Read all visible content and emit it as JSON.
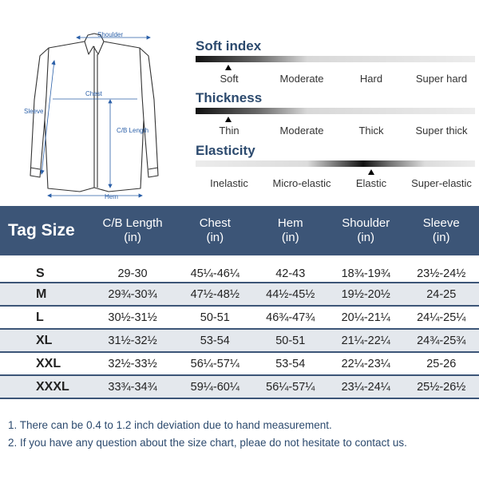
{
  "diagram": {
    "shoulder_label": "Shoulder",
    "chest_label": "Chest",
    "sleeve_label": "Sleeve",
    "cb_length_label": "C/B Length",
    "hem_label": "Hem"
  },
  "indices": [
    {
      "title": "Soft index",
      "options": [
        "Soft",
        "Moderate",
        "Hard",
        "Super hard"
      ],
      "selected": 0
    },
    {
      "title": "Thickness",
      "options": [
        "Thin",
        "Moderate",
        "Thick",
        "Super thick"
      ],
      "selected": 0
    },
    {
      "title": "Elasticity",
      "options": [
        "Inelastic",
        "Micro-elastic",
        "Elastic",
        "Super-elastic"
      ],
      "selected": 2
    }
  ],
  "table": {
    "headers": [
      {
        "line1": "Tag Size",
        "line2": ""
      },
      {
        "line1": "C/B Length",
        "line2": "(in)"
      },
      {
        "line1": "Chest",
        "line2": "(in)"
      },
      {
        "line1": "Hem",
        "line2": "(in)"
      },
      {
        "line1": "Shoulder",
        "line2": "(in)"
      },
      {
        "line1": "Sleeve",
        "line2": "(in)"
      }
    ],
    "rows": [
      {
        "size": "S",
        "cb": "29-30",
        "chest": "45¼-46¼",
        "hem": "42-43",
        "shoulder": "18¾-19¾",
        "sleeve": "23½-24½"
      },
      {
        "size": "M",
        "cb": "29¾-30¾",
        "chest": "47½-48½",
        "hem": "44½-45½",
        "shoulder": "19½-20½",
        "sleeve": "24-25"
      },
      {
        "size": "L",
        "cb": "30½-31½",
        "chest": "50-51",
        "hem": "46¾-47¾",
        "shoulder": "20¼-21¼",
        "sleeve": "24¼-25¼"
      },
      {
        "size": "XL",
        "cb": "31½-32½",
        "chest": "53-54",
        "hem": "50-51",
        "shoulder": "21¼-22¼",
        "sleeve": "24¾-25¾"
      },
      {
        "size": "XXL",
        "cb": "32½-33½",
        "chest": "56¼-57¼",
        "hem": "53-54",
        "shoulder": "22¼-23¼",
        "sleeve": "25-26"
      },
      {
        "size": "XXXL",
        "cb": "33¾-34¾",
        "chest": "59¼-60¼",
        "hem": "56¼-57¼",
        "shoulder": "23¼-24¼",
        "sleeve": "25½-26½"
      }
    ]
  },
  "notes": [
    "1. There can be 0.4 to 1.2 inch deviation due to hand measurement.",
    "2. If you have any question about the size chart, pleae do not hesitate to contact us."
  ],
  "colors": {
    "header_bg": "#3c5577",
    "row_alt": "#e4e8ed",
    "accent_text": "#2c4a6e",
    "dimension_lines": "#2a5fa8"
  }
}
